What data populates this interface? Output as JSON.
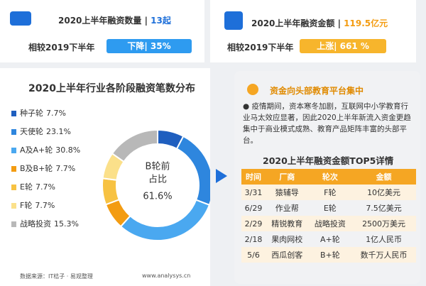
{
  "stats": [
    {
      "title": "2020上半年融资数量 |",
      "value": "13起",
      "compare": "相较2019下半年",
      "change": "下降| 35%"
    },
    {
      "title": "2020上半年融资金额 |",
      "value": "119.5亿元",
      "compare": "相较2019下半年",
      "change": "上涨| 661 %"
    }
  ],
  "chart_data": {
    "type": "pie",
    "title": "2020上半年行业各阶段融资笔数分布",
    "categories": [
      "种子轮",
      "天使轮",
      "A及A+轮",
      "B及B+轮",
      "E轮",
      "F轮",
      "战略投资"
    ],
    "values": [
      7.7,
      23.1,
      30.8,
      7.7,
      7.7,
      7.7,
      15.3
    ],
    "value_labels": [
      "7.7%",
      "23.1%",
      "30.8%",
      "7.7%",
      "7.7%",
      "7.7%",
      "15.3%"
    ],
    "colors": [
      "#1f5fbf",
      "#2e86de",
      "#4aa8f0",
      "#f39c12",
      "#f7c242",
      "#fbe08a",
      "#b8b8b8"
    ],
    "center_label": "B轮前",
    "center_label2": "占比",
    "center_value": "61.6%",
    "source": "数据来源：IT桔子 · 易观整理",
    "site": "www.analysys.cn"
  },
  "insight": {
    "title": "资金向头部教育平台集中",
    "text": "● 疫情期间，资本寒冬加剧，互联网中小学教育行业马太效应显著，因此2020上半年新流入资金更趋集中于商业模式成熟、教育产品矩阵丰富的头部平台。"
  },
  "table": {
    "title": "2020上半年融资金额TOP5详情",
    "header": [
      "时间",
      "厂商",
      "轮次",
      "金额"
    ],
    "rows": [
      [
        "3/31",
        "猿辅导",
        "F轮",
        "10亿美元"
      ],
      [
        "6/29",
        "作业帮",
        "E轮",
        "7.5亿美元"
      ],
      [
        "2/29",
        "精锐教育",
        "战略投资",
        "2500万美元"
      ],
      [
        "2/18",
        "果肉网校",
        "A+轮",
        "1亿人民币"
      ],
      [
        "5/6",
        "西瓜创客",
        "B+轮",
        "数千万人民币"
      ]
    ]
  }
}
